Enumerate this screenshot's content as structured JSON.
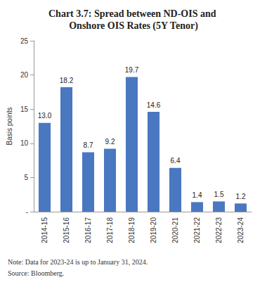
{
  "chart_data": {
    "type": "bar",
    "title": "Chart 3.7: Spread between ND-OIS and Onshore OIS Rates (5Y Tenor)",
    "y_label": "Basis points",
    "categories": [
      "2014-15",
      "2015-16",
      "2016-17",
      "2017-18",
      "2018-19",
      "2019-20",
      "2020-21",
      "2021-22",
      "2022-23",
      "2023-24"
    ],
    "values": [
      13.0,
      18.2,
      8.7,
      9.2,
      19.7,
      14.6,
      6.4,
      1.4,
      1.5,
      1.2
    ],
    "value_labels": [
      "13.0",
      "18.2",
      "8.7",
      "9.2",
      "19.7",
      "14.6",
      "6.4",
      "1.4",
      "1.5",
      "1.2"
    ],
    "data_labels": true,
    "color": "#4a78c0",
    "ylim": [
      0,
      25
    ],
    "yticks": [
      {
        "value": 0,
        "label": "-"
      },
      5,
      10,
      15,
      20,
      25
    ],
    "grid": false,
    "notes": [
      "Note: Data for 2023-24 is up to January 31, 2024.",
      "Source: Bloomberg."
    ]
  }
}
